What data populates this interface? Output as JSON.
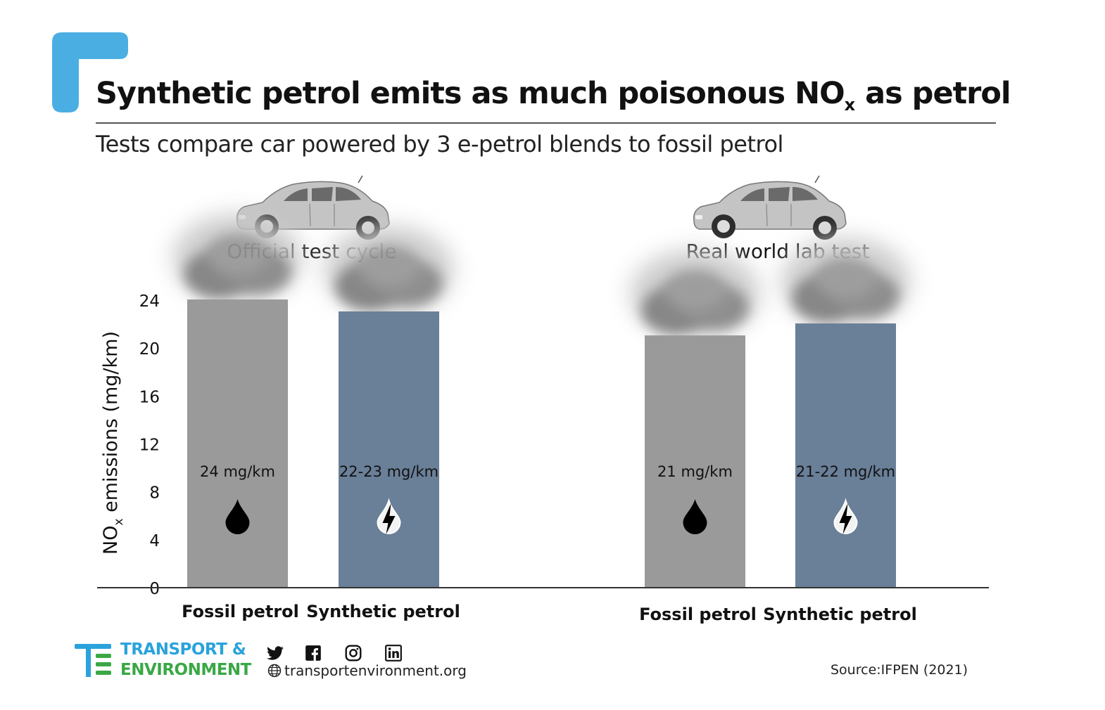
{
  "title": {
    "main": "Synthetic petrol emits as much poisonous NO",
    "subscript": "x",
    "tail": " as petrol"
  },
  "subtitle": "Tests compare car powered by 3 e-petrol blends to fossil petrol",
  "colors": {
    "accent_blue": "#4aaee2",
    "fossil_bar": "#9a9a9a",
    "synthetic_bar": "#6a7f98",
    "logo_blue": "#2aa3dc",
    "logo_green": "#39a845"
  },
  "chart_data": {
    "type": "bar",
    "title": "Synthetic petrol emits as much poisonous NOx as petrol",
    "subtitle": "Tests compare car powered by 3 e-petrol blends to fossil petrol",
    "ylabel": "NO",
    "ylabel_sub": "x",
    "ylabel_tail": " emissions (mg/km)",
    "ylim": [
      0,
      24
    ],
    "yticks": [
      0,
      4,
      8,
      12,
      16,
      20,
      24
    ],
    "grid": false,
    "groups": [
      {
        "name": "Official test cycle",
        "bars": [
          {
            "category": "Fossil petrol",
            "value": 24,
            "label": "24 mg/km",
            "fuel": "fossil",
            "icon": "oil-drop-icon"
          },
          {
            "category": "Synthetic petrol",
            "value": 23,
            "label": "22-23 mg/km",
            "fuel": "synthetic",
            "icon": "electric-drop-icon"
          }
        ]
      },
      {
        "name": "Real world lab test",
        "bars": [
          {
            "category": "Fossil petrol",
            "value": 21,
            "label": "21 mg/km",
            "fuel": "fossil",
            "icon": "oil-drop-icon"
          },
          {
            "category": "Synthetic petrol",
            "value": 22,
            "label": "21-22 mg/km",
            "fuel": "synthetic",
            "icon": "electric-drop-icon"
          }
        ]
      }
    ]
  },
  "footer": {
    "logo_line1": "TRANSPORT &",
    "logo_line2": "ENVIRONMENT",
    "social_icons": [
      "twitter-icon",
      "facebook-icon",
      "instagram-icon",
      "linkedin-icon"
    ],
    "website": "transportenvironment.org",
    "source": "Source:IFPEN (2021)"
  }
}
